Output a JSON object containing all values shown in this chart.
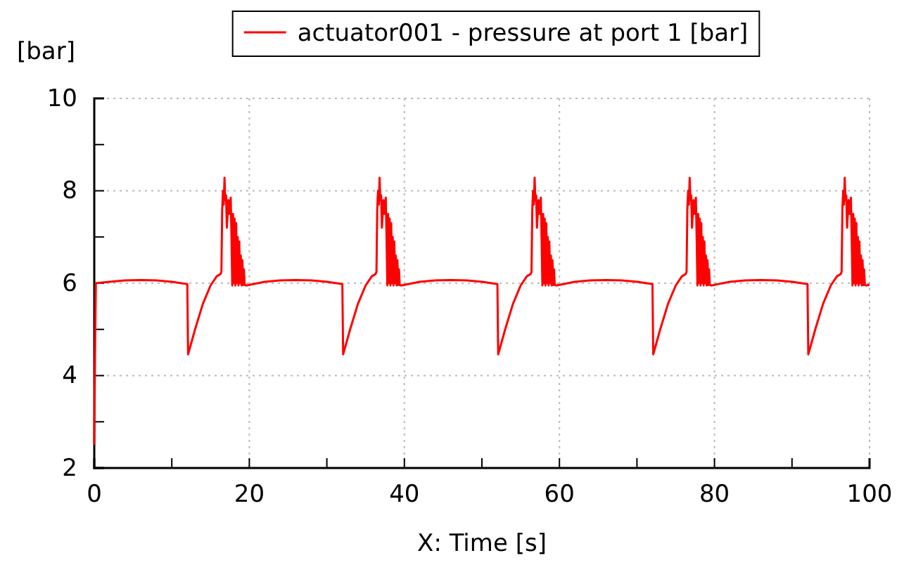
{
  "chart_data": {
    "type": "line",
    "xlabel": "X: Time [s]",
    "ylabel": "[bar]",
    "legend": "top",
    "grid": true,
    "line_style": "solid",
    "marker": "none",
    "xlim": [
      0,
      100
    ],
    "ylim": [
      2,
      10
    ],
    "xticks": [
      0,
      {
        "value": 10,
        "label": null
      },
      20,
      {
        "value": 30,
        "label": null
      },
      40,
      {
        "value": 50,
        "label": null
      },
      60,
      {
        "value": 70,
        "label": null
      },
      80,
      {
        "value": 90,
        "label": null
      },
      100
    ],
    "yticks": [
      2,
      {
        "value": 3,
        "label": null
      },
      4,
      {
        "value": 5,
        "label": null
      },
      6,
      {
        "value": 7,
        "label": null
      },
      8,
      {
        "value": 9,
        "label": null
      },
      10
    ],
    "series": [
      {
        "name": "actuator001 - pressure at port 1 [bar]",
        "color": "#ff0000",
        "x": [
          0,
          0.1,
          0.2,
          2,
          4,
          6,
          8,
          10,
          12,
          12.1,
          13,
          14,
          15,
          15.8,
          16.3,
          16.4,
          16.5,
          16.6,
          16.7,
          16.8,
          16.9,
          17,
          17.1,
          17.3,
          17.4,
          17.6,
          17.7,
          17.8,
          17.9,
          18,
          18.1,
          18.2,
          18.3,
          18.4,
          18.5,
          18.6,
          18.7,
          18.8,
          18.9,
          19,
          19.1,
          19.2,
          19.3,
          19.4,
          19.6,
          22,
          24,
          26,
          28,
          30,
          32,
          32.1,
          33,
          34,
          35,
          35.8,
          36.3,
          36.4,
          36.5,
          36.6,
          36.7,
          36.8,
          36.9,
          37,
          37.1,
          37.3,
          37.4,
          37.6,
          37.7,
          37.8,
          37.9,
          38,
          38.1,
          38.2,
          38.3,
          38.4,
          38.5,
          38.6,
          38.7,
          38.8,
          38.9,
          39,
          39.1,
          39.2,
          39.3,
          39.4,
          39.6,
          42,
          44,
          46,
          48,
          50,
          52,
          52.1,
          53,
          54,
          55,
          55.8,
          56.3,
          56.4,
          56.5,
          56.6,
          56.7,
          56.8,
          56.9,
          57,
          57.1,
          57.3,
          57.4,
          57.6,
          57.7,
          57.8,
          57.9,
          58,
          58.1,
          58.2,
          58.3,
          58.4,
          58.5,
          58.6,
          58.7,
          58.8,
          58.9,
          59,
          59.1,
          59.2,
          59.3,
          59.4,
          59.6,
          62,
          64,
          66,
          68,
          70,
          72,
          72.1,
          73,
          74,
          75,
          75.8,
          76.3,
          76.4,
          76.5,
          76.6,
          76.7,
          76.8,
          76.9,
          77,
          77.1,
          77.3,
          77.4,
          77.6,
          77.7,
          77.8,
          77.9,
          78,
          78.1,
          78.2,
          78.3,
          78.4,
          78.5,
          78.6,
          78.7,
          78.8,
          78.9,
          79,
          79.1,
          79.2,
          79.3,
          79.4,
          79.6,
          82,
          84,
          86,
          88,
          90,
          92,
          92.1,
          93,
          94,
          95,
          95.8,
          96.3,
          96.4,
          96.5,
          96.6,
          96.7,
          96.8,
          96.9,
          97,
          97.1,
          97.3,
          97.4,
          97.6,
          97.7,
          97.8,
          97.9,
          98,
          98.1,
          98.2,
          98.3,
          98.4,
          98.5,
          98.6,
          98.7,
          98.8,
          98.9,
          99,
          99.1,
          99.2,
          99.3,
          99.4,
          99.6,
          100
        ],
        "values": [
          2.5,
          4.5,
          6.0,
          6.03,
          6.06,
          6.07,
          6.06,
          6.03,
          5.98,
          4.46,
          5.0,
          5.55,
          5.95,
          6.15,
          6.2,
          6.25,
          7.6,
          8.0,
          7.7,
          8.28,
          7.8,
          7.9,
          7.2,
          7.8,
          7.5,
          7.85,
          7.0,
          5.95,
          7.5,
          6.0,
          7.4,
          5.95,
          7.3,
          6.0,
          7.0,
          5.95,
          6.9,
          6.0,
          6.6,
          5.95,
          6.5,
          5.96,
          6.3,
          5.96,
          5.95,
          6.03,
          6.06,
          6.07,
          6.06,
          6.03,
          5.98,
          4.46,
          5.0,
          5.55,
          5.95,
          6.15,
          6.2,
          6.25,
          7.6,
          8.0,
          7.7,
          8.28,
          7.8,
          7.9,
          7.2,
          7.8,
          7.5,
          7.85,
          7.0,
          5.95,
          7.5,
          6.0,
          7.4,
          5.95,
          7.3,
          6.0,
          7.0,
          5.95,
          6.9,
          6.0,
          6.6,
          5.95,
          6.5,
          5.96,
          6.3,
          5.96,
          5.95,
          6.03,
          6.06,
          6.07,
          6.06,
          6.03,
          5.98,
          4.46,
          5.0,
          5.55,
          5.95,
          6.15,
          6.2,
          6.25,
          7.6,
          8.0,
          7.7,
          8.28,
          7.8,
          7.9,
          7.2,
          7.8,
          7.5,
          7.85,
          7.0,
          5.95,
          7.5,
          6.0,
          7.4,
          5.95,
          7.3,
          6.0,
          7.0,
          5.95,
          6.9,
          6.0,
          6.6,
          5.95,
          6.5,
          5.96,
          6.3,
          5.96,
          5.95,
          6.03,
          6.06,
          6.07,
          6.06,
          6.03,
          5.98,
          4.46,
          5.0,
          5.55,
          5.95,
          6.15,
          6.2,
          6.25,
          7.6,
          8.0,
          7.7,
          8.28,
          7.8,
          7.9,
          7.2,
          7.8,
          7.5,
          7.85,
          7.0,
          5.95,
          7.5,
          6.0,
          7.4,
          5.95,
          7.3,
          6.0,
          7.0,
          5.95,
          6.9,
          6.0,
          6.6,
          5.95,
          6.5,
          5.96,
          6.3,
          5.96,
          5.95,
          6.03,
          6.06,
          6.07,
          6.06,
          6.03,
          5.98,
          4.46,
          5.0,
          5.55,
          5.95,
          6.15,
          6.2,
          6.25,
          7.6,
          8.0,
          7.7,
          8.28,
          7.8,
          7.9,
          7.2,
          7.8,
          7.5,
          7.85,
          7.0,
          5.95,
          7.5,
          6.0,
          7.4,
          5.95,
          7.3,
          6.0,
          7.0,
          5.95,
          6.9,
          6.0,
          6.6,
          5.95,
          6.5,
          5.96,
          6.3,
          5.96,
          5.95,
          5.97
        ]
      }
    ]
  }
}
